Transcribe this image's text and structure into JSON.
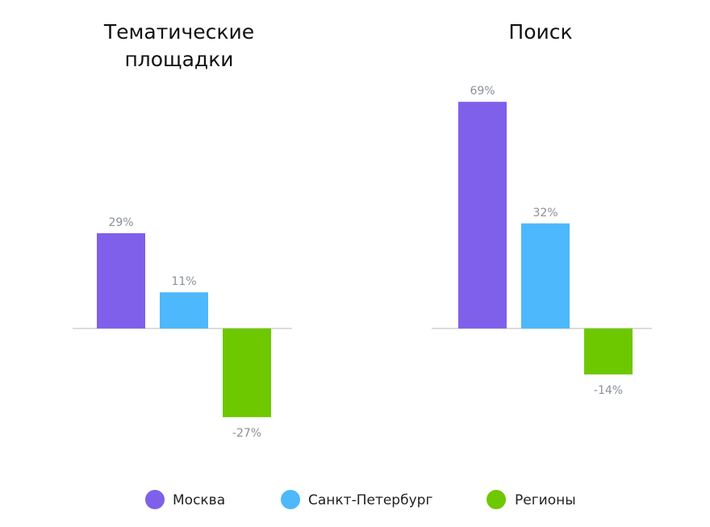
{
  "chart_data": [
    {
      "type": "bar",
      "title_lines": [
        "Тематические",
        "площадки"
      ],
      "categories": [
        "Москва",
        "Санкт-Петербург",
        "Регионы"
      ],
      "values": [
        29,
        11,
        -27
      ],
      "labels": [
        "29%",
        "11%",
        "-27%"
      ],
      "ylim": [
        -30,
        70
      ],
      "grid": false
    },
    {
      "type": "bar",
      "title_lines": [
        "Поиск"
      ],
      "categories": [
        "Москва",
        "Санкт-Петербург",
        "Регионы"
      ],
      "values": [
        69,
        32,
        -14
      ],
      "labels": [
        "69%",
        "32%",
        "-14%"
      ],
      "ylim": [
        -30,
        70
      ],
      "grid": false
    }
  ],
  "legend": {
    "position": "bottom",
    "items": [
      {
        "label": "Москва",
        "color": "#7f60ea"
      },
      {
        "label": "Санкт-Петербург",
        "color": "#4db8fb"
      },
      {
        "label": "Регионы",
        "color": "#6ec800"
      }
    ]
  }
}
